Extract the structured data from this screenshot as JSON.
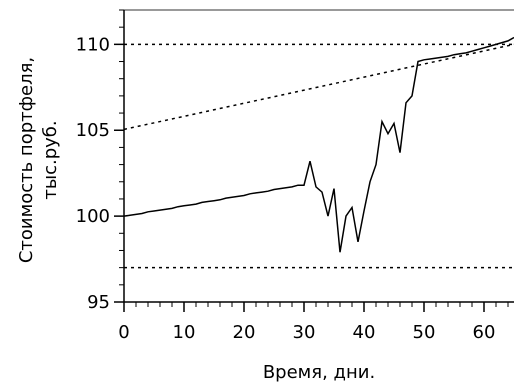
{
  "chart_data": {
    "type": "line",
    "xlabel": "Время, дни.",
    "ylabel_lines": [
      "Стоимость портфеля,",
      "тыс.руб."
    ],
    "xlim": [
      0,
      65
    ],
    "ylim": [
      95,
      112
    ],
    "x_ticks": [
      0,
      10,
      20,
      30,
      40,
      50,
      60
    ],
    "y_ticks": [
      95,
      100,
      105,
      110
    ],
    "grid": false,
    "series": [
      {
        "style": "solid",
        "points": [
          [
            0,
            100.0
          ],
          [
            1,
            100.05
          ],
          [
            2,
            100.1
          ],
          [
            3,
            100.15
          ],
          [
            4,
            100.25
          ],
          [
            5,
            100.3
          ],
          [
            6,
            100.35
          ],
          [
            7,
            100.4
          ],
          [
            8,
            100.45
          ],
          [
            9,
            100.55
          ],
          [
            10,
            100.6
          ],
          [
            11,
            100.65
          ],
          [
            12,
            100.7
          ],
          [
            13,
            100.8
          ],
          [
            14,
            100.85
          ],
          [
            15,
            100.9
          ],
          [
            16,
            100.95
          ],
          [
            17,
            101.05
          ],
          [
            18,
            101.1
          ],
          [
            19,
            101.15
          ],
          [
            20,
            101.2
          ],
          [
            21,
            101.3
          ],
          [
            22,
            101.35
          ],
          [
            23,
            101.4
          ],
          [
            24,
            101.45
          ],
          [
            25,
            101.55
          ],
          [
            26,
            101.6
          ],
          [
            27,
            101.65
          ],
          [
            28,
            101.7
          ],
          [
            29,
            101.8
          ],
          [
            30,
            101.8
          ],
          [
            31,
            103.2
          ],
          [
            32,
            101.7
          ],
          [
            33,
            101.4
          ],
          [
            34,
            100.0
          ],
          [
            35,
            101.6
          ],
          [
            36,
            97.9
          ],
          [
            37,
            100.0
          ],
          [
            38,
            100.5
          ],
          [
            39,
            98.5
          ],
          [
            40,
            100.3
          ],
          [
            41,
            102.0
          ],
          [
            42,
            103.0
          ],
          [
            43,
            105.5
          ],
          [
            44,
            104.8
          ],
          [
            45,
            105.4
          ],
          [
            46,
            103.7
          ],
          [
            47,
            106.6
          ],
          [
            48,
            107.0
          ],
          [
            49,
            109.0
          ],
          [
            50,
            109.1
          ],
          [
            51,
            109.15
          ],
          [
            52,
            109.2
          ],
          [
            53,
            109.25
          ],
          [
            54,
            109.3
          ],
          [
            55,
            109.4
          ],
          [
            56,
            109.45
          ],
          [
            57,
            109.5
          ],
          [
            58,
            109.6
          ],
          [
            59,
            109.7
          ],
          [
            60,
            109.8
          ],
          [
            61,
            109.9
          ],
          [
            62,
            110.0
          ],
          [
            63,
            110.1
          ],
          [
            64,
            110.2
          ],
          [
            65,
            110.4
          ]
        ]
      },
      {
        "style": "dotted",
        "points": [
          [
            0,
            105.05
          ],
          [
            65,
            110.0
          ]
        ]
      },
      {
        "style": "dotted",
        "points": [
          [
            0,
            110.0
          ],
          [
            65,
            110.0
          ]
        ]
      },
      {
        "style": "dotted",
        "points": [
          [
            0,
            97.0
          ],
          [
            65,
            97.0
          ]
        ]
      }
    ]
  }
}
